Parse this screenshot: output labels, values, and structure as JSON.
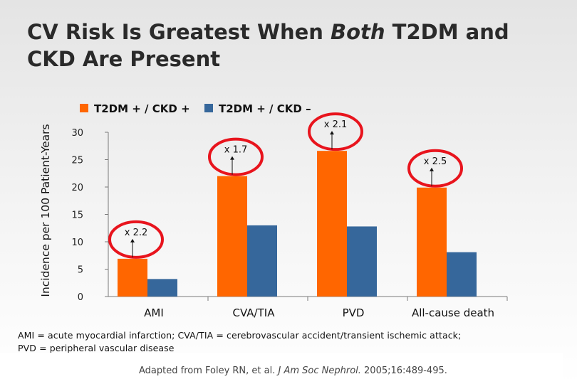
{
  "title": {
    "line1_pre": "CV Risk Is Greatest When ",
    "line1_em": "Both",
    "line1_post": " T2DM and",
    "line2": "CKD Are Present"
  },
  "chart_data": {
    "type": "bar",
    "categories": [
      "AMI",
      "CVA/TIA",
      "PVD",
      "All-cause death"
    ],
    "series": [
      {
        "name": "T2DM + / CKD +",
        "color": "#ff6600",
        "values": [
          6.9,
          22.0,
          26.6,
          19.9
        ]
      },
      {
        "name": "T2DM + / CKD –",
        "color": "#36679b",
        "values": [
          3.2,
          13.0,
          12.8,
          8.1
        ]
      }
    ],
    "ylabel": "Incidence per 100 Patient-Years",
    "ylim": [
      0,
      30
    ],
    "yticks": [
      0,
      5,
      10,
      15,
      20,
      25,
      30
    ],
    "legend_position": "top",
    "annotations": [
      {
        "category": "AMI",
        "text": "x 2.2"
      },
      {
        "category": "CVA/TIA",
        "text": "x 1.7"
      },
      {
        "category": "PVD",
        "text": "x 2.1"
      },
      {
        "category": "All-cause death",
        "text": "x 2.5"
      }
    ],
    "highlight_color": "#e8141d"
  },
  "footnote": {
    "line1": "AMI = acute myocardial infarction; CVA/TIA = cerebrovascular accident/transient ischemic attack;",
    "line2": "PVD = peripheral vascular disease"
  },
  "source": {
    "pre": "Adapted from Foley RN, et al. ",
    "journal": "J Am Soc Nephrol.",
    "post": " 2005;16:489-495."
  }
}
